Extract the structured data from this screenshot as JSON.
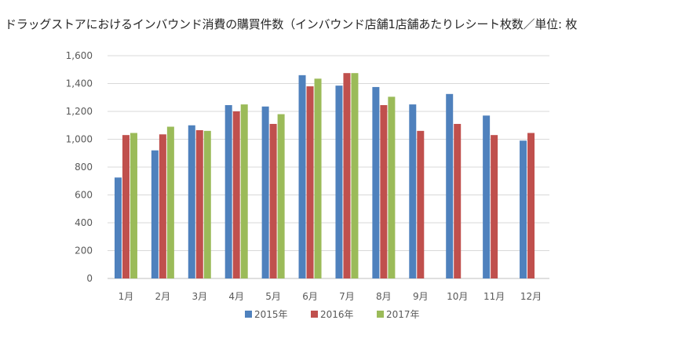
{
  "chart_data": {
    "type": "bar",
    "title": "ドラッグストアにおけるインバウンド消費の購買件数（インバウンド店舗1店舗あたりレシート枚数／単位: 枚",
    "xlabel": "",
    "ylabel": "",
    "ylim": [
      0,
      1600
    ],
    "yticks": [
      0,
      200,
      400,
      600,
      800,
      1000,
      1200,
      1400,
      1600
    ],
    "ytick_labels": [
      "0",
      "200",
      "400",
      "600",
      "800",
      "1,000",
      "1,200",
      "1,400",
      "1,600"
    ],
    "categories": [
      "1月",
      "2月",
      "3月",
      "4月",
      "5月",
      "6月",
      "7月",
      "8月",
      "9月",
      "10月",
      "11月",
      "12月"
    ],
    "series": [
      {
        "name": "2015年",
        "color": "#4F81BD",
        "values": [
          725,
          920,
          1100,
          1245,
          1235,
          1460,
          1385,
          1375,
          1250,
          1325,
          1170,
          990
        ]
      },
      {
        "name": "2016年",
        "color": "#C0504D",
        "values": [
          1030,
          1035,
          1065,
          1200,
          1110,
          1380,
          1475,
          1245,
          1060,
          1110,
          1030,
          1045
        ]
      },
      {
        "name": "2017年",
        "color": "#9BBB59",
        "values": [
          1045,
          1090,
          1060,
          1250,
          1180,
          1435,
          1475,
          1305,
          null,
          null,
          null,
          null
        ]
      }
    ],
    "grid": true,
    "legend_position": "bottom"
  }
}
